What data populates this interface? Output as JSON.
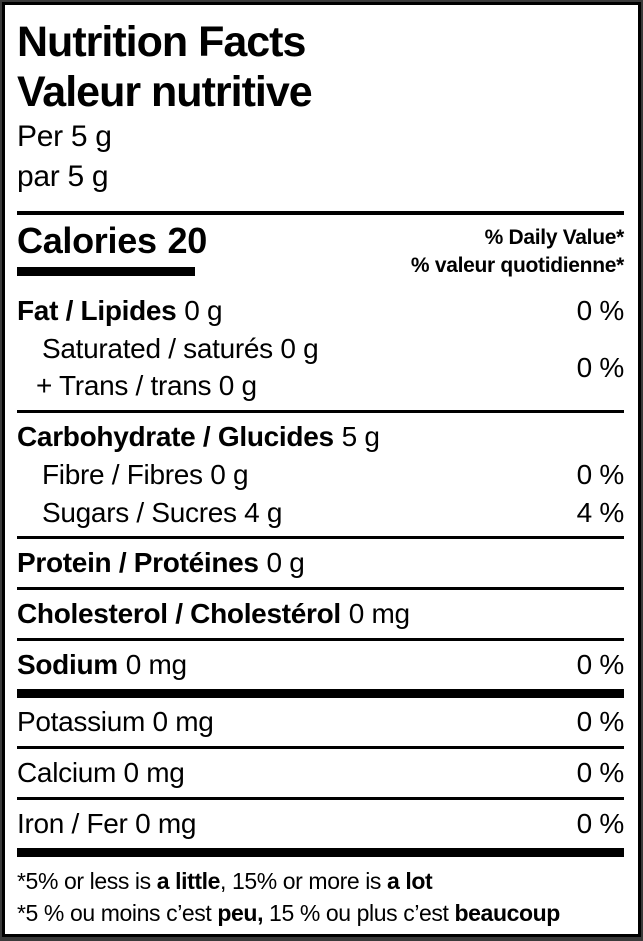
{
  "colors": {
    "background": "#ffffff",
    "border": "#000000",
    "text": "#000000",
    "page_edge": "#3a3a3a"
  },
  "label": {
    "title_en": "Nutrition Facts",
    "title_fr": "Valeur nutritive",
    "serving_en": "Per 5 g",
    "serving_fr": "par 5 g",
    "calories": {
      "label": "Calories",
      "value": "20"
    },
    "dv_header": {
      "en": "% Daily Value*",
      "fr": "% valeur quotidienne*"
    },
    "nutrients": {
      "fat": {
        "name": "Fat / Lipides",
        "amount": "0 g",
        "dv": "0 %"
      },
      "sat_trans": {
        "line1": "Saturated / saturés 0 g",
        "line2": "+ Trans / trans 0 g",
        "dv": "0 %"
      },
      "carbohydrate": {
        "name": "Carbohydrate / Glucides",
        "amount": "5 g"
      },
      "fibre": {
        "text": "Fibre / Fibres 0 g",
        "dv": "0 %"
      },
      "sugars": {
        "text": "Sugars / Sucres 4 g",
        "dv": "4 %"
      },
      "protein": {
        "name": "Protein / Protéines",
        "amount": "0 g"
      },
      "cholesterol": {
        "name": "Cholesterol / Cholestérol",
        "amount": "0 mg"
      },
      "sodium": {
        "name": "Sodium",
        "amount": "0 mg",
        "dv": "0 %"
      },
      "potassium": {
        "text": "Potassium 0 mg",
        "dv": "0 %"
      },
      "calcium": {
        "text": "Calcium 0 mg",
        "dv": "0 %"
      },
      "iron": {
        "text": "Iron / Fer 0 mg",
        "dv": "0 %"
      }
    },
    "footnote_en": {
      "parts": [
        "*5% or less is ",
        "a little",
        ", 15% or more is ",
        "a lot"
      ]
    },
    "footnote_fr": {
      "parts": [
        "*5 % ou moins c’est ",
        "peu,",
        " 15 % ou plus c’est ",
        "beaucoup"
      ]
    }
  }
}
